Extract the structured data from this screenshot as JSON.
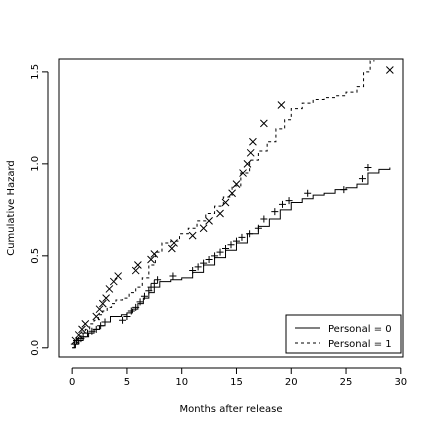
{
  "chart_data": {
    "type": "line",
    "title": "",
    "xlabel": "Months after release",
    "ylabel": "Cumulative Hazard",
    "xlim": [
      -1.2,
      30.2
    ],
    "ylim": [
      -0.05,
      1.57
    ],
    "xticks": [
      0,
      5,
      10,
      15,
      20,
      25,
      30
    ],
    "yticks": [
      0.0,
      0.5,
      1.0,
      1.5
    ],
    "xtick_labels": [
      "0",
      "5",
      "10",
      "15",
      "20",
      "25",
      "30"
    ],
    "ytick_labels": [
      "0.0",
      "0.5",
      "1.0",
      "1.5"
    ],
    "grid": false,
    "legend_position": "bottom-right",
    "series": [
      {
        "name": "Personal = 0",
        "line_style": "solid",
        "marker": "plus",
        "color": "#000000",
        "x": [
          0.0,
          0.3,
          0.6,
          1.0,
          1.5,
          2.0,
          2.5,
          3.0,
          3.5,
          4.0,
          4.5,
          5.0,
          5.5,
          6.0,
          6.5,
          7.0,
          7.5,
          8.0,
          9.0,
          10.0,
          11.0,
          12.0,
          13.0,
          14.0,
          15.0,
          16.0,
          17.0,
          18.0,
          19.0,
          20.0,
          21.0,
          22.0,
          23.0,
          24.0,
          25.0,
          26.0,
          27.0,
          28.0,
          29.0
        ],
        "y": [
          0.0,
          0.02,
          0.04,
          0.06,
          0.08,
          0.1,
          0.12,
          0.14,
          0.17,
          0.17,
          0.18,
          0.19,
          0.21,
          0.24,
          0.27,
          0.3,
          0.33,
          0.36,
          0.37,
          0.38,
          0.41,
          0.45,
          0.49,
          0.53,
          0.57,
          0.62,
          0.66,
          0.7,
          0.75,
          0.79,
          0.81,
          0.83,
          0.84,
          0.86,
          0.87,
          0.89,
          0.95,
          0.97,
          0.98
        ],
        "censor_x": [
          0.2,
          0.4,
          0.6,
          0.8,
          1.0,
          1.4,
          1.8,
          2.2,
          2.6,
          3.0,
          4.6,
          5.0,
          5.4,
          5.8,
          6.2,
          6.6,
          7.0,
          7.2,
          7.5,
          7.8,
          9.2,
          11.0,
          11.5,
          12.0,
          12.5,
          13.0,
          13.5,
          14.0,
          14.5,
          15.0,
          15.5,
          16.2,
          17.0,
          17.5,
          18.5,
          19.2,
          19.8,
          21.5,
          24.8,
          26.5,
          27.0
        ],
        "censor_y": [
          0.02,
          0.04,
          0.04,
          0.05,
          0.06,
          0.08,
          0.09,
          0.1,
          0.12,
          0.14,
          0.15,
          0.17,
          0.2,
          0.22,
          0.25,
          0.28,
          0.31,
          0.33,
          0.35,
          0.37,
          0.39,
          0.42,
          0.44,
          0.46,
          0.48,
          0.5,
          0.52,
          0.54,
          0.56,
          0.58,
          0.6,
          0.62,
          0.65,
          0.7,
          0.74,
          0.78,
          0.8,
          0.84,
          0.86,
          0.92,
          0.98
        ]
      },
      {
        "name": "Personal = 1",
        "line_style": "dashed",
        "marker": "x",
        "color": "#000000",
        "x": [
          0.0,
          0.2,
          0.5,
          0.8,
          1.2,
          1.6,
          2.0,
          2.4,
          2.8,
          3.2,
          3.6,
          4.0,
          4.6,
          5.2,
          5.8,
          6.4,
          7.0,
          7.6,
          8.2,
          9.0,
          9.8,
          10.6,
          11.4,
          12.2,
          13.0,
          13.8,
          14.6,
          15.4,
          16.2,
          17.0,
          17.8,
          18.6,
          19.4,
          20.0,
          21.0,
          22.0,
          23.0,
          24.0,
          25.0,
          26.0,
          26.6,
          27.2,
          27.6
        ],
        "y": [
          0.0,
          0.03,
          0.06,
          0.08,
          0.1,
          0.13,
          0.15,
          0.18,
          0.2,
          0.22,
          0.24,
          0.26,
          0.27,
          0.3,
          0.33,
          0.38,
          0.45,
          0.52,
          0.57,
          0.58,
          0.62,
          0.65,
          0.69,
          0.73,
          0.77,
          0.82,
          0.88,
          0.95,
          1.02,
          1.07,
          1.12,
          1.19,
          1.24,
          1.3,
          1.33,
          1.35,
          1.36,
          1.37,
          1.39,
          1.42,
          1.5,
          1.56,
          1.56
        ],
        "censor_x": [
          0.3,
          0.6,
          0.9,
          1.2,
          2.2,
          2.5,
          2.8,
          3.1,
          3.4,
          3.8,
          4.2,
          5.8,
          6.0,
          7.2,
          7.5,
          9.1,
          9.3,
          11.0,
          12.0,
          12.5,
          13.5,
          14.0,
          14.6,
          15.0,
          15.6,
          16.0,
          16.3,
          16.5,
          17.5,
          19.1,
          29.0
        ],
        "censor_y": [
          0.04,
          0.07,
          0.1,
          0.13,
          0.17,
          0.21,
          0.24,
          0.27,
          0.32,
          0.36,
          0.39,
          0.42,
          0.45,
          0.48,
          0.51,
          0.54,
          0.57,
          0.61,
          0.65,
          0.69,
          0.73,
          0.79,
          0.84,
          0.89,
          0.95,
          1.0,
          1.06,
          1.12,
          1.22,
          1.32,
          1.51
        ]
      }
    ]
  }
}
